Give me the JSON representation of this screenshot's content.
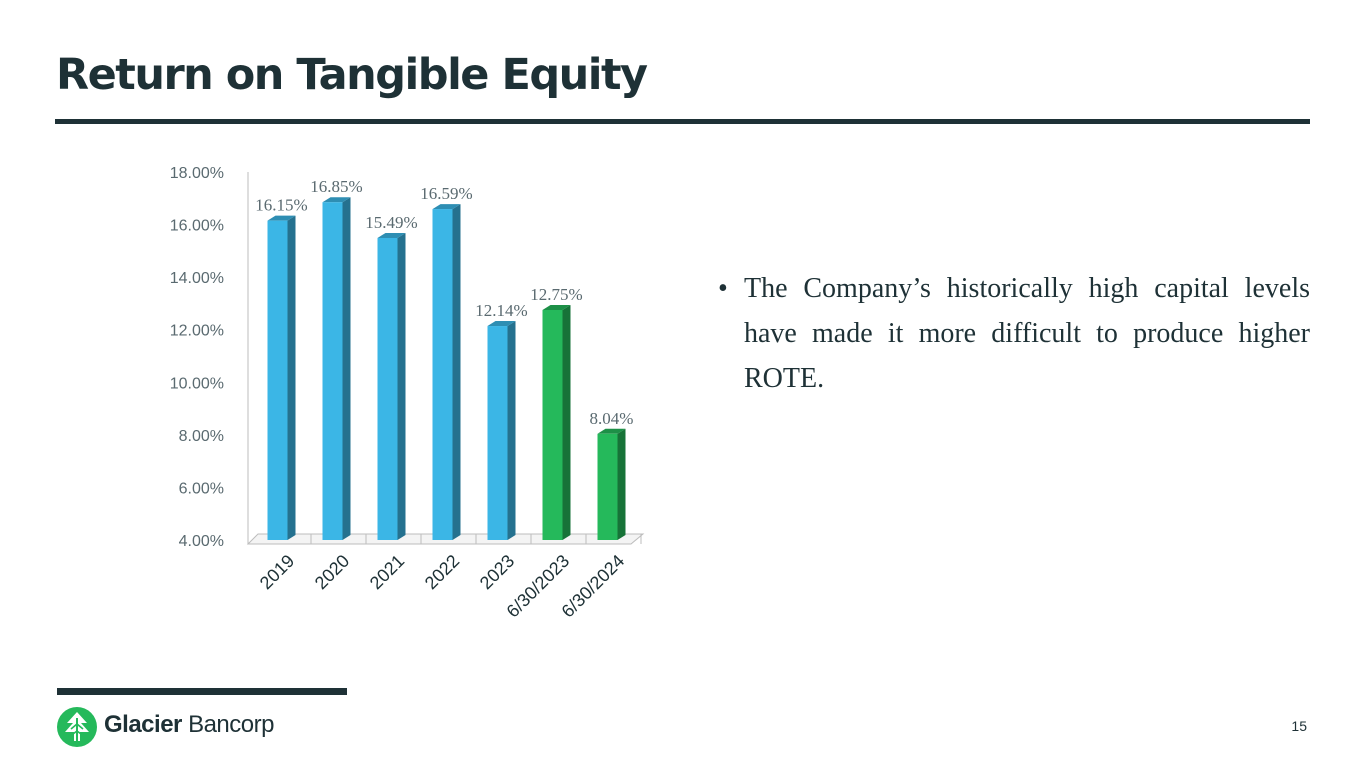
{
  "slide": {
    "title": "Return on Tangible Equity",
    "bullet": "The Company’s historically high capital levels have made it more difficult to produce higher ROTE.",
    "bullet_glyph": "•",
    "page_number": "15"
  },
  "footer": {
    "brand_primary": "Glacier",
    "brand_secondary": "Bancorp",
    "logo_icon": "glacier-tree-logo-icon"
  },
  "colors": {
    "title": "#1e3136",
    "bar_blue": "#3bb6e6",
    "bar_green": "#25b95b",
    "label": "#5a6a70",
    "axis": "#bdbdbd"
  },
  "chart_data": {
    "type": "bar",
    "categories": [
      "2019",
      "2020",
      "2021",
      "2022",
      "2023",
      "6/30/2023",
      "6/30/2024"
    ],
    "values": [
      16.15,
      16.85,
      15.49,
      16.59,
      12.14,
      12.75,
      8.04
    ],
    "data_labels": [
      "16.15%",
      "16.85%",
      "15.49%",
      "16.59%",
      "12.14%",
      "12.75%",
      "8.04%"
    ],
    "bar_colors": [
      "blue",
      "blue",
      "blue",
      "blue",
      "blue",
      "green",
      "green"
    ],
    "ylim": [
      4,
      18
    ],
    "yticks": [
      4,
      6,
      8,
      10,
      12,
      14,
      16,
      18
    ],
    "ytick_labels": [
      "4.00%",
      "6.00%",
      "8.00%",
      "10.00%",
      "12.00%",
      "14.00%",
      "16.00%",
      "18.00%"
    ],
    "title": "",
    "xlabel": "",
    "ylabel": "",
    "grid": false,
    "legend": "none",
    "style": "3d-column"
  }
}
